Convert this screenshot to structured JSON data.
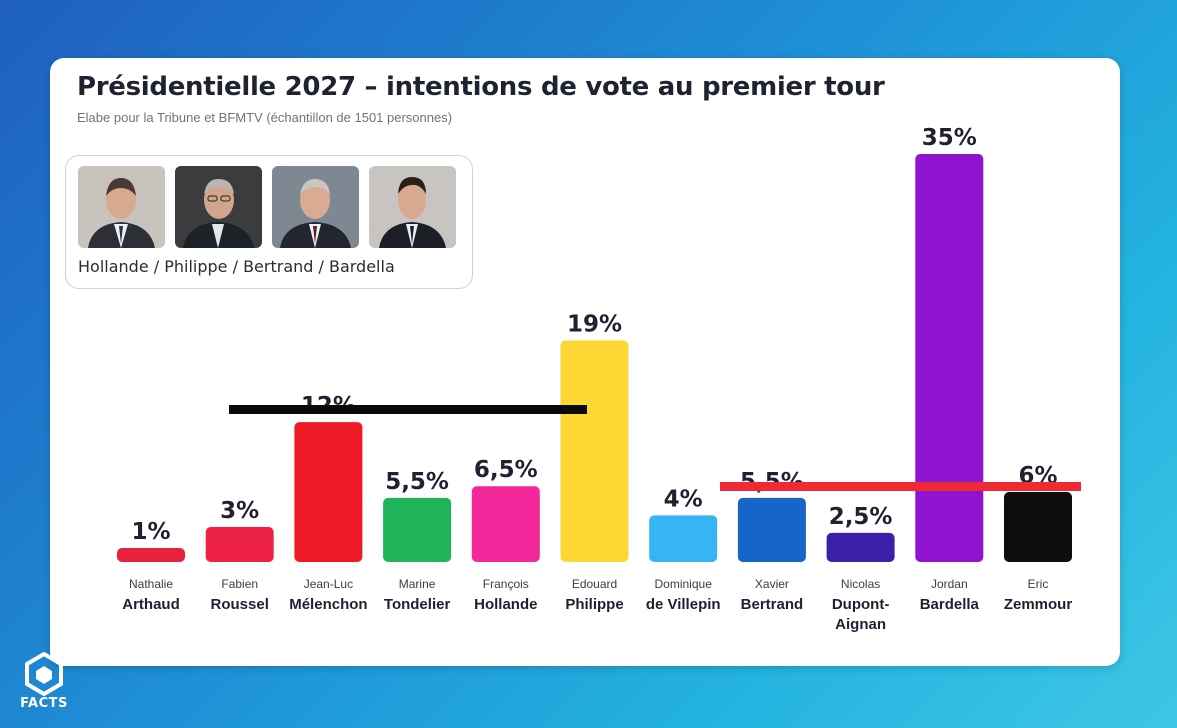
{
  "chart_data": {
    "type": "bar",
    "title": "Présidentielle 2027 – intentions de vote au premier tour",
    "subtitle": "Elabe pour la Tribune et  BFMTV (échantillon de 1501 personnes)",
    "scenario_label": "Hollande / Philippe / Bertrand / Bardella",
    "categories": [
      {
        "first": "Nathalie",
        "last": "Arthaud"
      },
      {
        "first": "Fabien",
        "last": "Roussel"
      },
      {
        "first": "Jean-Luc",
        "last": "Mélenchon"
      },
      {
        "first": "Marine",
        "last": "Tondelier"
      },
      {
        "first": "François",
        "last": "Hollande"
      },
      {
        "first": "Edouard",
        "last": "Philippe"
      },
      {
        "first": "Dominique",
        "last": "de Villepin"
      },
      {
        "first": "Xavier",
        "last": "Bertrand"
      },
      {
        "first": "Nicolas",
        "last": "Dupont-\nAignan"
      },
      {
        "first": "Jordan",
        "last": "Bardella"
      },
      {
        "first": "Eric",
        "last": "Zemmour"
      }
    ],
    "values": [
      1,
      3,
      12,
      5.5,
      6.5,
      19,
      4,
      5.5,
      2.5,
      35,
      6
    ],
    "value_labels": [
      "1%",
      "3%",
      "12%",
      "5,5%",
      "6,5%",
      "19%",
      "4%",
      "5,5%",
      "2,5%",
      "35%",
      "6%"
    ],
    "colors": [
      "#e8223c",
      "#ee2246",
      "#ee1b26",
      "#22b45a",
      "#f2289a",
      "#fdd835",
      "#36b4f4",
      "#1766c7",
      "#3a1fa8",
      "#8e14cf",
      "#0d0d0d"
    ],
    "ylim": [
      0,
      35
    ],
    "grid": false,
    "legend": "none"
  },
  "scenario_people": [
    "hollande-photo",
    "philippe-photo",
    "bertrand-photo",
    "bardella-photo"
  ],
  "annotations": [
    {
      "type": "strike-line",
      "color": "#0a0a0a",
      "from_category": "Jean-Luc Mélenchon",
      "to_category": "Edouard Philippe"
    },
    {
      "type": "strike-line",
      "color": "#ee2b34",
      "from_category": "Xavier Bertrand",
      "to_category": "Eric Zemmour"
    }
  ],
  "watermark": {
    "text": "FACTS",
    "color": "#ffffff"
  }
}
